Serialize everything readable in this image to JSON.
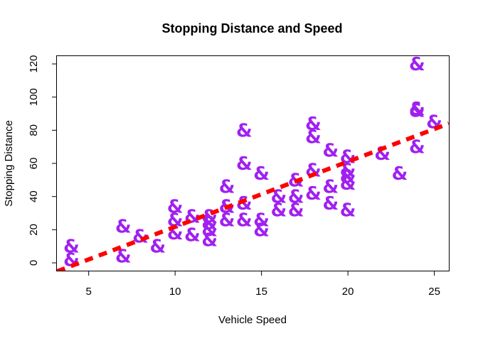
{
  "chart_data": {
    "type": "scatter",
    "title": "Stopping Distance and Speed",
    "xlabel": "Vehicle Speed",
    "ylabel": "Stopping Distance",
    "xlim": [
      3.16,
      25.84
    ],
    "ylim": [
      -4.72,
      124.72
    ],
    "xticks": [
      5,
      10,
      15,
      20,
      25
    ],
    "yticks": [
      0,
      20,
      40,
      60,
      80,
      100,
      120
    ],
    "grid": false,
    "legend": "none",
    "point_symbol": "&",
    "point_color": "#A020F0",
    "line_color": "#FF0000",
    "x": [
      4,
      4,
      7,
      7,
      8,
      9,
      10,
      10,
      10,
      11,
      11,
      12,
      12,
      12,
      12,
      13,
      13,
      13,
      13,
      14,
      14,
      14,
      14,
      15,
      15,
      15,
      16,
      16,
      17,
      17,
      17,
      18,
      18,
      18,
      18,
      19,
      19,
      19,
      20,
      20,
      20,
      20,
      20,
      22,
      23,
      24,
      24,
      24,
      24,
      25
    ],
    "y": [
      2,
      10,
      4,
      22,
      16,
      10,
      18,
      26,
      34,
      17,
      28,
      14,
      20,
      24,
      28,
      26,
      34,
      34,
      46,
      26,
      36,
      60,
      80,
      20,
      26,
      54,
      32,
      40,
      32,
      40,
      50,
      42,
      56,
      76,
      84,
      36,
      46,
      68,
      32,
      48,
      52,
      56,
      64,
      66,
      54,
      70,
      92,
      93,
      120,
      85
    ],
    "regression_line": {
      "intercept": -17.5791,
      "slope": 3.9324
    }
  }
}
